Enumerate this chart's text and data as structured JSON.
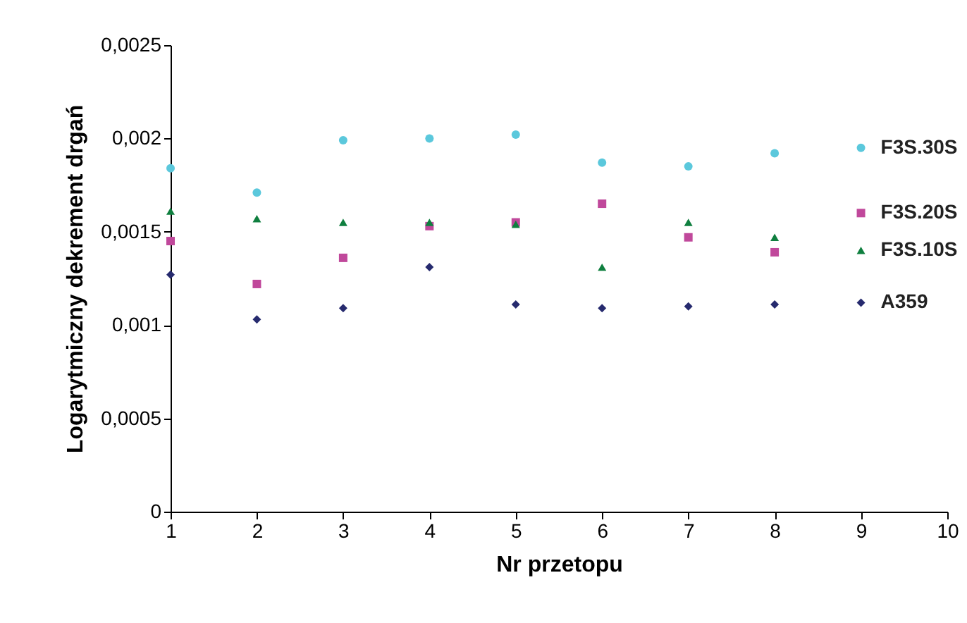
{
  "chart_data": {
    "type": "scatter",
    "xlabel": "Nr przetopu",
    "ylabel": "Logarytmiczny dekrement drgań",
    "x": [
      1,
      2,
      3,
      4,
      5,
      6,
      7,
      8,
      9
    ],
    "xlim": [
      1,
      10
    ],
    "xticks": [
      1,
      2,
      3,
      4,
      5,
      6,
      7,
      8,
      9,
      10
    ],
    "ylim": [
      0,
      0.0025
    ],
    "yticks": [
      {
        "value": 0,
        "label": "0"
      },
      {
        "value": 0.0005,
        "label": "0,0005"
      },
      {
        "value": 0.001,
        "label": "0,001"
      },
      {
        "value": 0.0015,
        "label": "0,0015"
      },
      {
        "value": 0.002,
        "label": "0,002"
      },
      {
        "value": 0.0025,
        "label": "0,0025"
      }
    ],
    "grid": false,
    "legend": false,
    "series": [
      {
        "name": "F3S.30S",
        "color": "#5bc8dc",
        "marker": "circle",
        "values": [
          0.00184,
          0.00171,
          0.00199,
          0.002,
          0.00202,
          0.00187,
          0.00185,
          0.00192,
          0.00195
        ]
      },
      {
        "name": "F3S.20S",
        "color": "#c0489b",
        "marker": "square",
        "values": [
          0.00145,
          0.00122,
          0.00136,
          0.00153,
          0.00155,
          0.00165,
          0.00147,
          0.00139,
          0.0016
        ]
      },
      {
        "name": "F3S.10S",
        "color": "#0f7f3f",
        "marker": "triangle",
        "values": [
          0.00161,
          0.00157,
          0.00155,
          0.00155,
          0.00154,
          0.00131,
          0.00155,
          0.00147,
          0.0014
        ]
      },
      {
        "name": "A359",
        "color": "#262a6e",
        "marker": "diamond",
        "values": [
          0.00127,
          0.00103,
          0.00109,
          0.00131,
          0.00111,
          0.00109,
          0.0011,
          0.00111,
          0.00112
        ]
      }
    ]
  }
}
